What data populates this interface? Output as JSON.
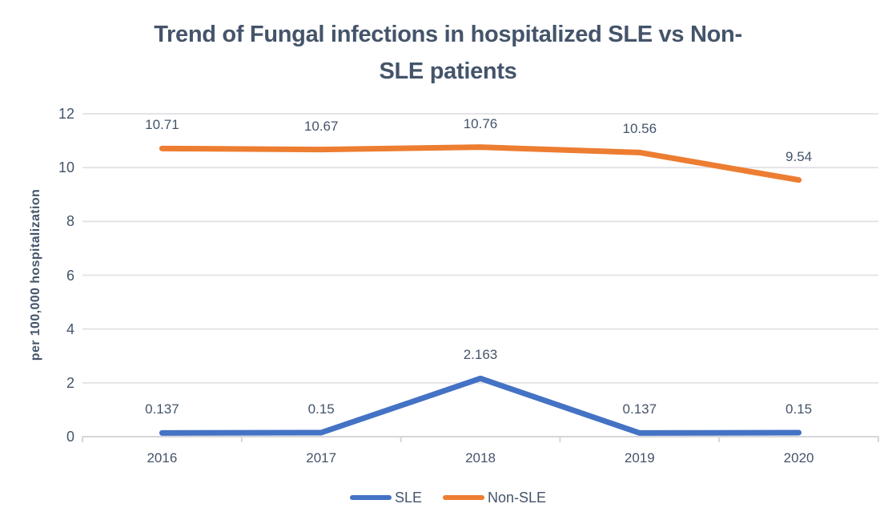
{
  "title": {
    "line1": "Trend of Fungal infections in hospitalized SLE vs Non-",
    "line2": "SLE patients"
  },
  "chart_data": {
    "type": "line",
    "title": "Trend of Fungal infections in hospitalized SLE vs Non-SLE patients",
    "categories": [
      "2016",
      "2017",
      "2018",
      "2019",
      "2020"
    ],
    "series": [
      {
        "name": "SLE",
        "color": "#4472C4",
        "values": [
          0.137,
          0.15,
          2.163,
          0.137,
          0.15
        ],
        "labels": [
          "0.137",
          "0.15",
          "2.163",
          "0.137",
          "0.15"
        ]
      },
      {
        "name": "Non-SLE",
        "color": "#ED7D31",
        "values": [
          10.71,
          10.67,
          10.76,
          10.56,
          9.54
        ],
        "labels": [
          "10.71",
          "10.67",
          "10.76",
          "10.56",
          "9.54"
        ]
      }
    ],
    "xlabel": "",
    "ylabel": "per 100,000 hospitalization",
    "ylim": [
      0,
      12
    ],
    "yticks": [
      0,
      2,
      4,
      6,
      8,
      10,
      12
    ],
    "grid": true,
    "legend_position": "bottom",
    "colors": {
      "text": "#44546A",
      "gridline": "#E4E4E8",
      "axis": "#D6D6DA"
    }
  }
}
